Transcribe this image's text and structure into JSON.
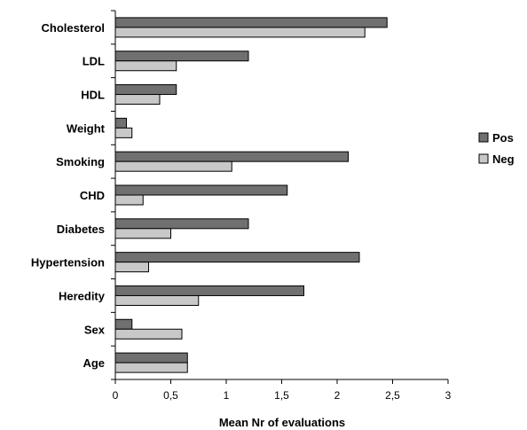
{
  "chart_data": {
    "type": "bar",
    "orientation": "horizontal",
    "categories": [
      "Cholesterol",
      "LDL",
      "HDL",
      "Weight",
      "Smoking",
      "CHD",
      "Diabetes",
      "Hypertension",
      "Heredity",
      "Sex",
      "Age"
    ],
    "series": [
      {
        "name": "Pos",
        "color": "#707070",
        "values": [
          2.45,
          1.2,
          0.55,
          0.1,
          2.1,
          1.55,
          1.2,
          2.2,
          1.7,
          0.15,
          0.65
        ]
      },
      {
        "name": "Neg",
        "color": "#c8c8c8",
        "values": [
          2.25,
          0.55,
          0.4,
          0.15,
          1.05,
          0.25,
          0.5,
          0.3,
          0.75,
          0.6,
          0.65
        ]
      }
    ],
    "xlabel": "Mean Nr of evaluations",
    "xlim": [
      0,
      3
    ],
    "xticks": [
      0,
      0.5,
      1,
      1.5,
      2,
      2.5,
      3
    ],
    "xtick_labels": [
      "0",
      "0,5",
      "1",
      "1,5",
      "2",
      "2,5",
      "3"
    ],
    "grid": false,
    "legend_position": "right"
  }
}
